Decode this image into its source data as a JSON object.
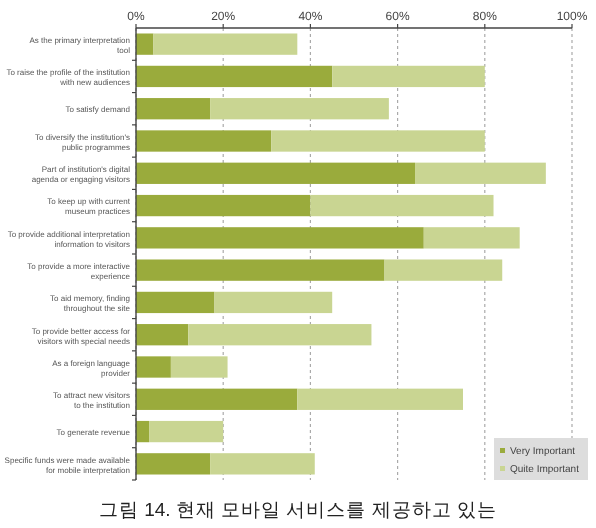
{
  "chart_data": {
    "type": "bar",
    "orientation": "horizontal",
    "stacked": true,
    "categories": [
      "As the primary interpretation tool",
      "To raise the profile of the institution with new audiences",
      "To satisfy demand",
      "To diversify the institution's public programmes",
      "Part of institution's digital agenda or engaging visitors",
      "To keep up with current museum practices",
      "To provide additional interpretation information to visitors",
      "To provide a more interactive experience",
      "To aid memory, finding throughout the site",
      "To provide better access for visitors with special needs",
      "As a foreign language provider",
      "To attract new visitors to the institution",
      "To generate revenue",
      "Specific funds were made available for mobile interpretation"
    ],
    "series": [
      {
        "name": "Very Important",
        "color": "#9aab3c",
        "values": [
          4,
          45,
          17,
          31,
          64,
          40,
          66,
          57,
          18,
          12,
          8,
          37,
          3,
          17
        ]
      },
      {
        "name": "Quite Important",
        "color": "#c9d592",
        "values": [
          33,
          35,
          41,
          49,
          30,
          42,
          22,
          27,
          27,
          42,
          13,
          38,
          17,
          24
        ]
      }
    ],
    "xlim": [
      0,
      100
    ],
    "xticks": [
      {
        "value": 0,
        "label": "0%"
      },
      {
        "value": 20,
        "label": "20%"
      },
      {
        "value": 40,
        "label": "40%"
      },
      {
        "value": 60,
        "label": "60%"
      },
      {
        "value": 80,
        "label": "80%"
      },
      {
        "value": 100,
        "label": "100%"
      }
    ],
    "grid": "x",
    "legend": "bottom right",
    "annotations": [
      "그림 14. 현재 모바일 서비스를 제공하고 있는"
    ]
  }
}
